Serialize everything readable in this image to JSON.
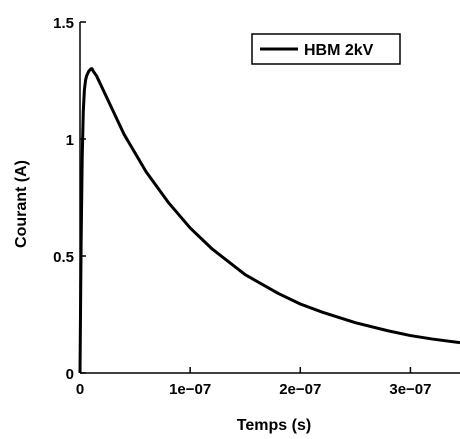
{
  "chart_data": {
    "type": "line",
    "xlabel": "Temps (s)",
    "ylabel": "Courant (A)",
    "xlim": [
      0,
      3.45e-07
    ],
    "ylim": [
      0,
      1.5
    ],
    "x_ticks": [
      {
        "value": 0,
        "label": "0"
      },
      {
        "value": 1e-07,
        "label": "1e−07"
      },
      {
        "value": 2e-07,
        "label": "2e−07"
      },
      {
        "value": 3e-07,
        "label": "3e−07"
      }
    ],
    "y_ticks": [
      {
        "value": 0,
        "label": "0"
      },
      {
        "value": 0.5,
        "label": "0.5"
      },
      {
        "value": 1,
        "label": "1"
      },
      {
        "value": 1.5,
        "label": "1.5"
      }
    ],
    "grid": false,
    "legend_position": "top-right",
    "series": [
      {
        "name": "HBM 2kV",
        "color": "#000000",
        "x": [
          0,
          1e-09,
          2e-09,
          3e-09,
          4e-09,
          5e-09,
          6e-09,
          8e-09,
          1e-08,
          1.1e-08,
          1.2e-08,
          1.5e-08,
          2e-08,
          3e-08,
          4e-08,
          5e-08,
          6e-08,
          8e-08,
          1e-07,
          1.2e-07,
          1.5e-07,
          1.8e-07,
          2e-07,
          2.2e-07,
          2.5e-07,
          2.8e-07,
          3e-07,
          3.2e-07,
          3.45e-07
        ],
        "y": [
          0,
          0.55,
          0.92,
          1.12,
          1.21,
          1.25,
          1.27,
          1.29,
          1.3,
          1.3,
          1.29,
          1.27,
          1.22,
          1.12,
          1.02,
          0.94,
          0.86,
          0.73,
          0.62,
          0.53,
          0.42,
          0.34,
          0.295,
          0.26,
          0.215,
          0.18,
          0.16,
          0.145,
          0.13
        ]
      }
    ]
  }
}
